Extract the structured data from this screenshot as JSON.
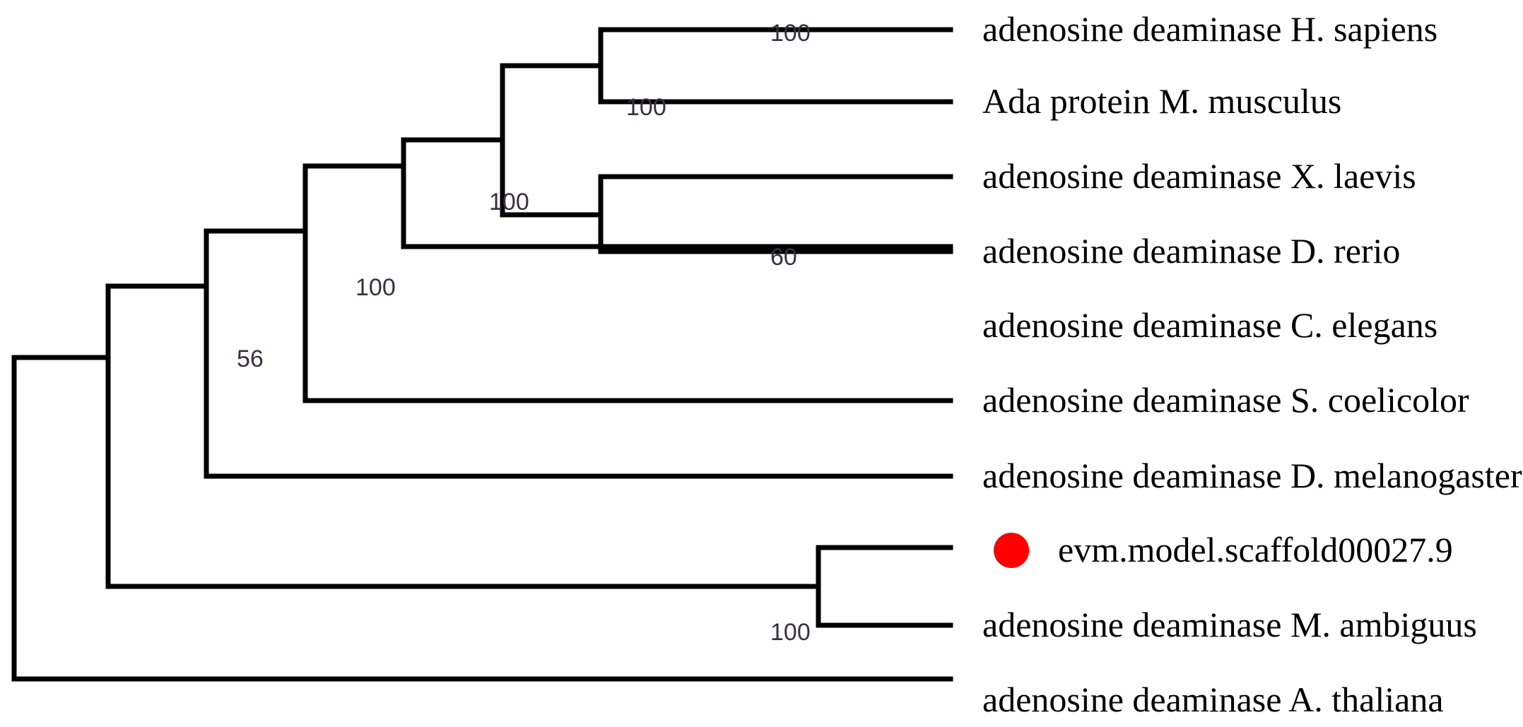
{
  "tree": {
    "highlight_color": "#ff0000",
    "taxa": [
      {
        "id": "hsap",
        "label": "adenosine deaminase H. sapiens"
      },
      {
        "id": "mmus",
        "label": "Ada protein M. musculus"
      },
      {
        "id": "xlae",
        "label": "adenosine deaminase X. laevis"
      },
      {
        "id": "drer",
        "label": "adenosine deaminase D. rerio"
      },
      {
        "id": "cele",
        "label": "adenosine deaminase C. elegans"
      },
      {
        "id": "scoe",
        "label": "adenosine deaminase S. coelicolor"
      },
      {
        "id": "dmel",
        "label": "adenosine deaminase D. melanogaster"
      },
      {
        "id": "evm",
        "label": "evm.model.scaffold00027.9",
        "marker": "red-circle"
      },
      {
        "id": "mamb",
        "label": "adenosine deaminase M. ambiguus"
      },
      {
        "id": "atha",
        "label": "adenosine deaminase A. thaliana"
      }
    ],
    "clades": [
      {
        "id": "hsap_mmus",
        "members": [
          "hsap",
          "mmus"
        ],
        "support": "100"
      },
      {
        "id": "xlae_drer",
        "members": [
          "xlae",
          "drer"
        ],
        "support": "60"
      },
      {
        "id": "vertebrates",
        "members": [
          "hsap",
          "mmus",
          "xlae",
          "drer"
        ],
        "support": "100"
      },
      {
        "id": "with_cele",
        "members": [
          "hsap",
          "mmus",
          "xlae",
          "drer",
          "cele"
        ],
        "support": "100"
      },
      {
        "id": "with_scoe",
        "members": [
          "hsap",
          "mmus",
          "xlae",
          "drer",
          "cele",
          "scoe"
        ],
        "support": "100"
      },
      {
        "id": "with_dmel",
        "members": [
          "hsap",
          "mmus",
          "xlae",
          "drer",
          "cele",
          "scoe",
          "dmel"
        ],
        "support": "56"
      },
      {
        "id": "evm_mamb",
        "members": [
          "evm",
          "mamb"
        ],
        "support": "100"
      }
    ]
  }
}
